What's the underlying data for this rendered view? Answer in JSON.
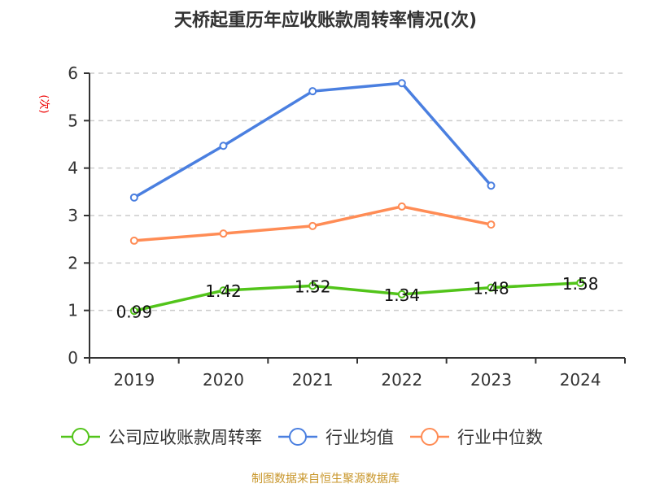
{
  "chart_data": {
    "type": "line",
    "title": "天桥起重历年应收账款周转率情况(次)",
    "ylabel": "(次)",
    "xlabel": "",
    "categories": [
      "2019",
      "2020",
      "2021",
      "2022",
      "2023",
      "2024"
    ],
    "ylim": [
      0,
      6
    ],
    "yticks": [
      0,
      1,
      2,
      3,
      4,
      5,
      6
    ],
    "grid": true,
    "legend_position": "bottom",
    "series": [
      {
        "name": "公司应收账款周转率",
        "color": "#52c41a",
        "values": [
          0.99,
          1.42,
          1.52,
          1.34,
          1.48,
          1.58
        ],
        "labels": [
          "0.99",
          "1.42",
          "1.52",
          "1.34",
          "1.48",
          "1.58"
        ]
      },
      {
        "name": "行业均值",
        "color": "#4a7fe0",
        "values": [
          3.38,
          4.47,
          5.62,
          5.79,
          3.63,
          null
        ]
      },
      {
        "name": "行业中位数",
        "color": "#ff8c55",
        "values": [
          2.47,
          2.62,
          2.78,
          3.19,
          2.81,
          null
        ]
      }
    ]
  },
  "footer": "制图数据来自恒生聚源数据库"
}
